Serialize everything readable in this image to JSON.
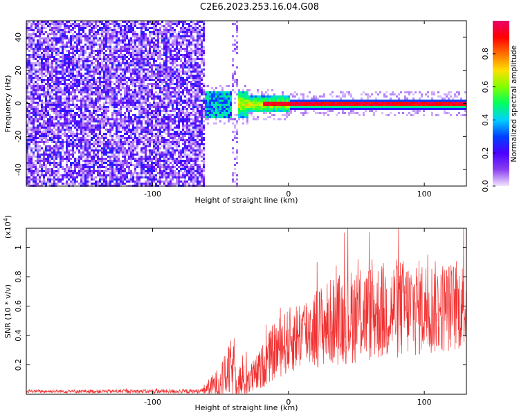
{
  "title": "C2E6.2023.253.16.04.G08",
  "chart_data": [
    {
      "type": "heatmap",
      "xlabel": "Height of straight line (km)",
      "ylabel": "Frequency (Hz)",
      "xlim": [
        -193,
        131
      ],
      "ylim": [
        -50,
        50
      ],
      "xticks": [
        -100,
        0,
        100
      ],
      "yticks": [
        -40,
        -20,
        0,
        20,
        40
      ],
      "colorbar": {
        "label": "Normalized spectral amplitude",
        "range": [
          0,
          1
        ],
        "ticks": [
          0.0,
          0.2,
          0.4,
          0.6,
          0.8
        ],
        "tick_labels": [
          "0.0",
          "0.2",
          "0.4",
          "0.6",
          "0.8"
        ],
        "colormap": [
          "#f3e6ff",
          "#8a3ff0",
          "#4a00ff",
          "#0040ff",
          "#00d0ff",
          "#00ff60",
          "#80ff00",
          "#ffe000",
          "#ff7000",
          "#ff0000",
          "#e8006a"
        ]
      },
      "features": {
        "noise_region_x": [
          -193,
          -62
        ],
        "carrier_frequency_hz": 0,
        "carrier_start_x": -62,
        "gap_spike_x": -40
      }
    },
    {
      "type": "line",
      "xlabel": "Height of straight line (km)",
      "ylabel": "SNR (10 * v/v)",
      "scale_label": "(x10",
      "scale_exp": "4",
      "scale_close": ")",
      "xlim": [
        -193,
        131
      ],
      "ylim": [
        0,
        1.13
      ],
      "xticks": [
        -100,
        0,
        100
      ],
      "yticks": [
        0.2,
        0.4,
        0.6,
        0.8,
        1.0
      ],
      "ytick_labels": [
        "0.2",
        "0.4",
        "0.6",
        "0.8",
        "1"
      ],
      "color": "#f03030",
      "envelope": [
        {
          "x": -193,
          "base": 0.02,
          "amp": 0.01
        },
        {
          "x": -65,
          "base": 0.02,
          "amp": 0.015
        },
        {
          "x": -50,
          "base": 0.08,
          "amp": 0.12
        },
        {
          "x": -42,
          "base": 0.18,
          "amp": 0.2
        },
        {
          "x": -35,
          "base": 0.08,
          "amp": 0.12
        },
        {
          "x": -25,
          "base": 0.12,
          "amp": 0.12
        },
        {
          "x": -10,
          "base": 0.3,
          "amp": 0.2
        },
        {
          "x": 10,
          "base": 0.42,
          "amp": 0.25
        },
        {
          "x": 40,
          "base": 0.52,
          "amp": 0.32
        },
        {
          "x": 80,
          "base": 0.58,
          "amp": 0.35
        },
        {
          "x": 131,
          "base": 0.6,
          "amp": 0.3
        }
      ]
    }
  ]
}
